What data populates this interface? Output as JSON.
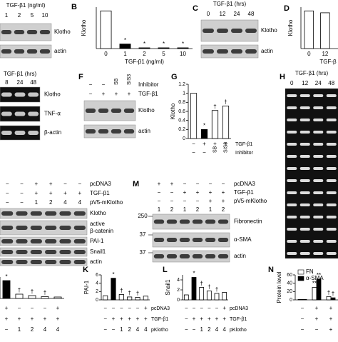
{
  "panel_labels": [
    "B",
    "C",
    "D",
    "F",
    "G",
    "H",
    "M",
    "K",
    "L",
    "N"
  ],
  "blots": [
    {
      "header": "TGF-β1 (ng/ml)",
      "lanes": [
        "1",
        "2",
        "5",
        "10"
      ],
      "rows": [
        [
          "Klotho"
        ],
        [
          "actin"
        ]
      ]
    },
    {
      "header": "TGF-β1 (hrs)",
      "lanes": [
        "0",
        "12",
        "24",
        "48"
      ],
      "rows": [
        [
          "Klotho"
        ],
        [
          "actin"
        ]
      ]
    },
    {
      "header": "TGF-β1 (hrs)",
      "lanes": [
        "8",
        "24",
        "48"
      ],
      "rows": [
        [
          "Klotho"
        ],
        [
          "TNF-α"
        ],
        [
          "β-actin"
        ]
      ]
    },
    {
      "conditions": [
        {
          "label": "Inhibitor",
          "signs": [
            "−",
            "−",
            "SB",
            "SIS3"
          ]
        },
        {
          "label": "TGF-β1",
          "signs": [
            "−",
            "+",
            "+",
            "+"
          ]
        }
      ],
      "rows": [
        [
          "Klotho"
        ],
        [
          "actin"
        ]
      ]
    },
    {
      "header": "TGF-β1 (hrs)",
      "lanes": [
        "0",
        "12",
        "24",
        "48"
      ]
    },
    {
      "conditions": [
        {
          "label": "pcDNA3",
          "signs": [
            "−",
            "−",
            "+",
            "+",
            "−",
            "−"
          ]
        },
        {
          "label": "TGF-β1",
          "signs": [
            "−",
            "−",
            "+",
            "+",
            "+",
            "+"
          ]
        },
        {
          "label": "pV5-mKlotho",
          "signs": [
            "−",
            "−",
            "1",
            "2",
            "4",
            "4"
          ]
        }
      ],
      "rows": [
        [
          "Klotho"
        ],
        [
          "active",
          "β-catenin"
        ],
        [
          "PAI-1"
        ],
        [
          "Snail1"
        ],
        [
          "actin"
        ]
      ]
    },
    {
      "conditions": [
        {
          "label": "pcDNA3",
          "signs": [
            "+",
            "+",
            "−",
            "−",
            "−",
            "−"
          ]
        },
        {
          "label": "TGF-β1",
          "signs": [
            "−",
            "−",
            "+",
            "+",
            "+",
            "+"
          ]
        },
        {
          "label": "pV5-mKlotho",
          "signs": [
            "−",
            "−",
            "−",
            "−",
            "+",
            "+"
          ]
        }
      ],
      "lanes": [
        "1",
        "2",
        "1",
        "2",
        "1",
        "2"
      ],
      "markers": [
        "250",
        "37",
        "37"
      ],
      "rows": [
        [
          "Fibronectin"
        ],
        [
          "α-SMA"
        ],
        [
          "actin"
        ]
      ]
    }
  ],
  "chart_data": [
    {
      "type": "bar",
      "ylabel": "Klotho",
      "xlabel": "TGF-β1 (ng/ml)",
      "categories": [
        "0",
        "1",
        "2",
        "5",
        "10"
      ],
      "values": [
        1.0,
        0.12,
        0.02,
        0.02,
        0.02
      ],
      "colors": [
        "#ffffff",
        "#000000",
        "#000000",
        "#000000",
        "#000000"
      ],
      "annotations": [
        null,
        "*",
        "*",
        "*",
        "*"
      ],
      "ylim": [
        0,
        1.1
      ]
    },
    {
      "type": "bar",
      "ylabel": "Klotho",
      "xlabel": "TGF-β",
      "categories": [
        "0",
        "12"
      ],
      "values": [
        1.0,
        0.95
      ],
      "colors": [
        "#ffffff",
        "#ffffff"
      ],
      "ylim": [
        0,
        1.1
      ]
    },
    {
      "type": "bar",
      "ylabel": "Klotho",
      "values": [
        1.0,
        0.2,
        0.62,
        0.72
      ],
      "colors": [
        "#ffffff",
        "#000000",
        "#ffffff",
        "#ffffff"
      ],
      "annotations": [
        null,
        "*",
        "†",
        "†"
      ],
      "ylim": [
        0,
        1.2
      ],
      "yticks": [
        0,
        0.2,
        0.4,
        0.6,
        0.8,
        1,
        1.2
      ],
      "conditions": [
        {
          "label": "TGF-β1",
          "signs": [
            "−",
            "+",
            "+",
            "+"
          ]
        },
        {
          "label": "Inhibitor",
          "signs": [
            "−",
            "−",
            "SB",
            "SIS3"
          ]
        }
      ]
    },
    {
      "type": "bar",
      "values": [
        5.0,
        1.2,
        0.8,
        0.5,
        0.4
      ],
      "colors": [
        "#000000",
        "#ffffff",
        "#ffffff",
        "#ffffff",
        "#ffffff"
      ],
      "annotations": [
        "*",
        "†",
        "†",
        "†",
        null
      ],
      "ylim": [
        0,
        6
      ],
      "conditions": [
        {
          "signs": [
            "+",
            "−",
            "−",
            "−",
            "+"
          ]
        },
        {
          "signs": [
            "+",
            "+",
            "+",
            "+",
            "+"
          ]
        },
        {
          "signs": [
            "−",
            "1",
            "2",
            "4",
            "4"
          ]
        }
      ]
    },
    {
      "type": "bar",
      "ylabel": "PAI-1",
      "values": [
        1,
        5.2,
        1.3,
        0.7,
        0.6,
        0.9
      ],
      "colors": [
        "#ffffff",
        "#000000",
        "#ffffff",
        "#ffffff",
        "#ffffff",
        "#ffffff"
      ],
      "annotations": [
        null,
        "*",
        "†",
        "†",
        "†",
        null
      ],
      "ylim": [
        0,
        6
      ],
      "yticks": [
        0,
        2,
        4,
        6
      ],
      "conditions": [
        {
          "label": "pcDNA3",
          "signs": [
            "−",
            "−",
            "−",
            "−",
            "−",
            "+"
          ]
        },
        {
          "label": "TGF-β1",
          "signs": [
            "−",
            "+",
            "+",
            "+",
            "+",
            "+"
          ]
        },
        {
          "label": "pKlotho",
          "signs": [
            "−",
            "−",
            "1",
            "2",
            "4",
            "4"
          ]
        }
      ]
    },
    {
      "type": "bar",
      "ylabel": "Snail1",
      "values": [
        1,
        4.5,
        2.5,
        1.8,
        1.3,
        1.5
      ],
      "colors": [
        "#ffffff",
        "#000000",
        "#ffffff",
        "#ffffff",
        "#ffffff",
        "#ffffff"
      ],
      "annotations": [
        null,
        "*",
        "†",
        "†",
        "†",
        null
      ],
      "ylim": [
        0,
        5
      ],
      "yticks": [
        0,
        2,
        4
      ],
      "conditions": [
        {
          "label": "pcDNA3",
          "signs": [
            "−",
            "−",
            "−",
            "−",
            "−",
            "+"
          ]
        },
        {
          "label": "TGF-β1",
          "signs": [
            "−",
            "+",
            "+",
            "+",
            "+",
            "+"
          ]
        },
        {
          "label": "pKlotho",
          "signs": [
            "−",
            "−",
            "1",
            "2",
            "4",
            "4"
          ]
        }
      ]
    },
    {
      "type": "bar",
      "ylabel": "Protein level",
      "series": [
        {
          "name": "FN",
          "color": "#ffffff",
          "values": [
            1,
            30,
            8
          ],
          "annotations": [
            null,
            "**",
            "†"
          ]
        },
        {
          "name": "α-SMA",
          "color": "#000000",
          "values": [
            1,
            50,
            5
          ],
          "annotations": [
            null,
            "**",
            "†"
          ]
        }
      ],
      "ylim": [
        0,
        60
      ],
      "yticks": [
        0,
        20,
        40,
        60
      ],
      "conditions": [
        {
          "signs": [
            "−",
            "+",
            "+"
          ]
        },
        {
          "signs": [
            "−",
            "+",
            "+"
          ]
        },
        {
          "signs": [
            "−",
            "−",
            "+"
          ]
        }
      ]
    }
  ]
}
